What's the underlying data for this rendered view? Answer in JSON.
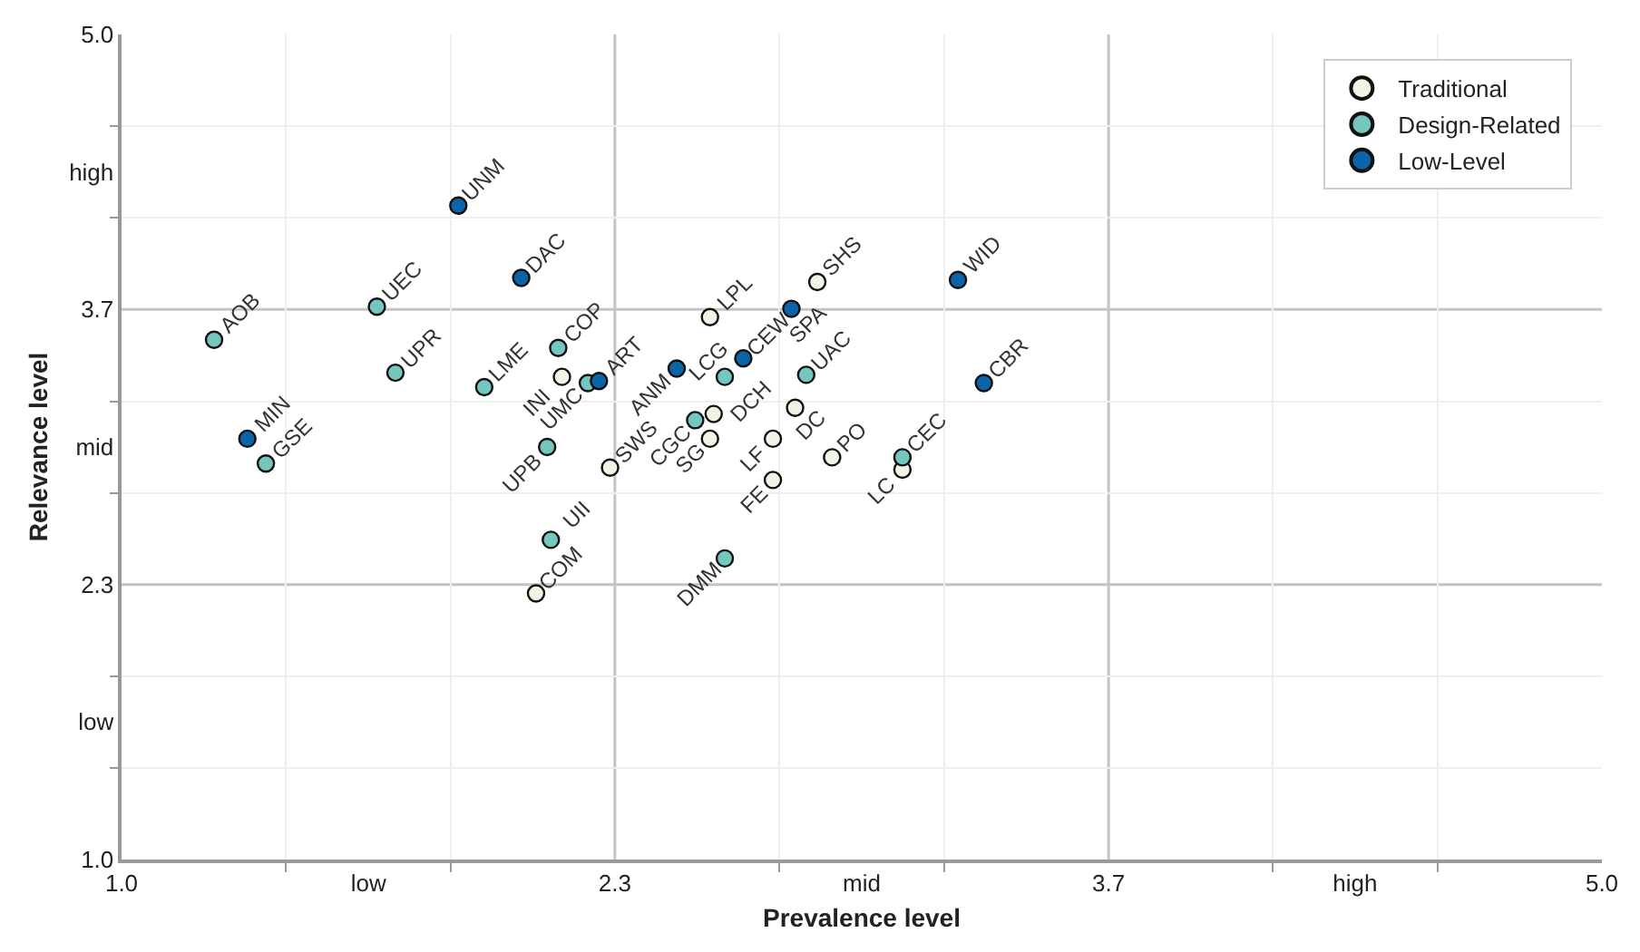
{
  "chart_data": {
    "type": "scatter",
    "xlabel": "Prevalence level",
    "ylabel": "Relevance level",
    "xlim": [
      1.0,
      5.0
    ],
    "ylim": [
      1.0,
      5.0
    ],
    "xticks": [
      {
        "value": 1,
        "label": "1.0"
      },
      {
        "value": 1.667,
        "label": "low"
      },
      {
        "value": 2.333,
        "label": "2.3"
      },
      {
        "value": 3.0,
        "label": "mid"
      },
      {
        "value": 3.667,
        "label": "3.7"
      },
      {
        "value": 4.333,
        "label": "high"
      },
      {
        "value": 5,
        "label": "5.0"
      },
      {
        "value": 1.444,
        "label": null
      },
      {
        "value": 1.889,
        "label": null
      },
      {
        "value": 2.778,
        "label": null
      },
      {
        "value": 3.222,
        "label": null
      },
      {
        "value": 4.111,
        "label": null
      },
      {
        "value": 4.556,
        "label": null
      }
    ],
    "yticks": [
      {
        "value": 1,
        "label": "1.0"
      },
      {
        "value": 1.667,
        "label": "low"
      },
      {
        "value": 2.333,
        "label": "2.3"
      },
      {
        "value": 3.0,
        "label": "mid"
      },
      {
        "value": 3.667,
        "label": "3.7"
      },
      {
        "value": 4.333,
        "label": "high"
      },
      {
        "value": 5,
        "label": "5.0"
      },
      {
        "value": 1.444,
        "label": null
      },
      {
        "value": 1.889,
        "label": null
      },
      {
        "value": 2.778,
        "label": null
      },
      {
        "value": 3.222,
        "label": null
      },
      {
        "value": 4.111,
        "label": null
      },
      {
        "value": 4.556,
        "label": null
      }
    ],
    "grid": true,
    "legend": "top right",
    "marker": "circle",
    "series": [
      {
        "name": "Traditional",
        "color": "#eef5e4",
        "x": [
          2.19,
          2.32,
          2.12,
          2.88,
          2.59,
          2.82,
          2.6,
          2.59,
          2.76,
          2.92,
          3.11,
          2.76
        ],
        "values": [
          3.34,
          2.9,
          2.29,
          3.8,
          3.63,
          3.19,
          3.16,
          3.04,
          3.04,
          2.95,
          2.89,
          2.84
        ]
      },
      {
        "name": "Design-Related",
        "color": "#74c6bf",
        "x": [
          1.69,
          1.25,
          1.74,
          1.98,
          2.18,
          2.26,
          1.39,
          2.15,
          2.16,
          2.63,
          2.85,
          2.55,
          3.11,
          2.63
        ],
        "values": [
          3.68,
          3.52,
          3.36,
          3.29,
          3.48,
          3.31,
          2.92,
          3.0,
          2.55,
          3.34,
          3.35,
          3.13,
          2.95,
          2.46
        ]
      },
      {
        "name": "Low-Level",
        "color": "#0b63a8",
        "x": [
          1.91,
          2.08,
          2.29,
          1.34,
          3.26,
          2.81,
          2.68,
          2.5,
          3.33
        ],
        "values": [
          4.17,
          3.82,
          3.32,
          3.04,
          3.81,
          3.67,
          3.43,
          3.38,
          3.31
        ]
      }
    ],
    "annotations": [
      {
        "text": "INI",
        "x": 2.19,
        "y": 3.34
      },
      {
        "text": "SWS",
        "x": 2.32,
        "y": 2.9
      },
      {
        "text": "COM",
        "x": 2.12,
        "y": 2.29
      },
      {
        "text": "SHS",
        "x": 2.88,
        "y": 3.8
      },
      {
        "text": "LPL",
        "x": 2.59,
        "y": 3.63
      },
      {
        "text": "DC",
        "x": 2.82,
        "y": 3.19
      },
      {
        "text": "DCH",
        "x": 2.6,
        "y": 3.16
      },
      {
        "text": "SG",
        "x": 2.59,
        "y": 3.04
      },
      {
        "text": "LF",
        "x": 2.76,
        "y": 3.04
      },
      {
        "text": "PO",
        "x": 2.92,
        "y": 2.95
      },
      {
        "text": "LC",
        "x": 3.11,
        "y": 2.89
      },
      {
        "text": "FE",
        "x": 2.76,
        "y": 2.84
      },
      {
        "text": "UEC",
        "x": 1.69,
        "y": 3.68
      },
      {
        "text": "AOB",
        "x": 1.25,
        "y": 3.52
      },
      {
        "text": "UPR",
        "x": 1.74,
        "y": 3.36
      },
      {
        "text": "LME",
        "x": 1.98,
        "y": 3.29
      },
      {
        "text": "COP",
        "x": 2.18,
        "y": 3.48
      },
      {
        "text": "UMC",
        "x": 2.26,
        "y": 3.31
      },
      {
        "text": "GSE",
        "x": 1.39,
        "y": 2.92
      },
      {
        "text": "UPB",
        "x": 2.15,
        "y": 3.0
      },
      {
        "text": "UII",
        "x": 2.16,
        "y": 2.55
      },
      {
        "text": "LCG",
        "x": 2.63,
        "y": 3.34
      },
      {
        "text": "UAC",
        "x": 2.85,
        "y": 3.35
      },
      {
        "text": "CGC",
        "x": 2.55,
        "y": 3.13
      },
      {
        "text": "CEC",
        "x": 3.11,
        "y": 2.95
      },
      {
        "text": "DMM",
        "x": 2.63,
        "y": 2.46
      },
      {
        "text": "UNM",
        "x": 1.91,
        "y": 4.17
      },
      {
        "text": "DAC",
        "x": 2.08,
        "y": 3.82
      },
      {
        "text": "ART",
        "x": 2.29,
        "y": 3.32
      },
      {
        "text": "MIN",
        "x": 1.34,
        "y": 3.04
      },
      {
        "text": "WID",
        "x": 3.26,
        "y": 3.81
      },
      {
        "text": "SPA",
        "x": 2.81,
        "y": 3.67
      },
      {
        "text": "CEW",
        "x": 2.68,
        "y": 3.43
      },
      {
        "text": "ANM",
        "x": 2.5,
        "y": 3.38
      },
      {
        "text": "CBR",
        "x": 3.33,
        "y": 3.31
      }
    ]
  }
}
